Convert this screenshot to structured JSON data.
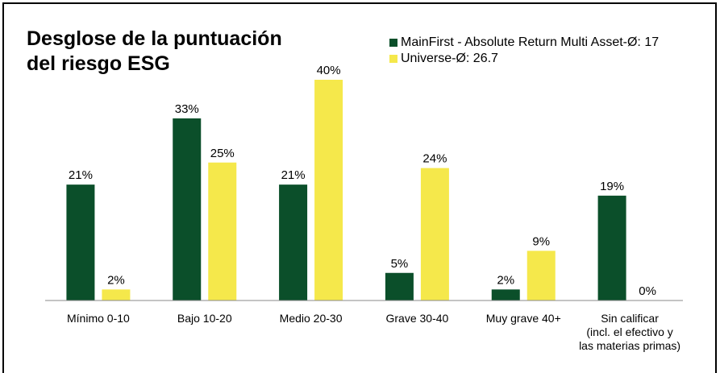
{
  "chart_data": {
    "type": "bar",
    "title_lines": [
      "Desglose de la puntuación",
      "del riesgo ESG"
    ],
    "categories": [
      [
        "Mínimo 0-10"
      ],
      [
        "Bajo 10-20"
      ],
      [
        "Medio 20-30"
      ],
      [
        "Grave 30-40"
      ],
      [
        "Muy grave 40+"
      ],
      [
        "Sin calificar",
        "(incl. el efectivo y",
        "las materias primas)"
      ]
    ],
    "series": [
      {
        "name": "MainFirst - Absolute Return Multi Asset-Ø: 17",
        "color": "#0b4f2a",
        "values": [
          21,
          33,
          21,
          5,
          2,
          19
        ],
        "labels": [
          "21%",
          "33%",
          "21%",
          "5%",
          "2%",
          "19%"
        ]
      },
      {
        "name": "Universe-Ø: 26.7",
        "color": "#f5e84b",
        "values": [
          2,
          25,
          40,
          24,
          9,
          0
        ],
        "labels": [
          "2%",
          "25%",
          "40%",
          "24%",
          "9%",
          "0%"
        ]
      }
    ],
    "ylim": [
      0,
      40
    ],
    "grid": false,
    "legend_position": "top-right"
  }
}
